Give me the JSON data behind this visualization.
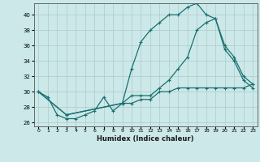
{
  "title": "",
  "xlabel": "Humidex (Indice chaleur)",
  "background_color": "#cce8e8",
  "grid_color": "#aacccc",
  "line_color": "#1a7070",
  "xlim": [
    -0.5,
    23.5
  ],
  "ylim": [
    25.5,
    41.5
  ],
  "yticks": [
    26,
    28,
    30,
    32,
    34,
    36,
    38,
    40
  ],
  "xticks": [
    0,
    1,
    2,
    3,
    4,
    5,
    6,
    7,
    8,
    9,
    10,
    11,
    12,
    13,
    14,
    15,
    16,
    17,
    18,
    19,
    20,
    21,
    22,
    23
  ],
  "line1_x": [
    0,
    1,
    2,
    3,
    4,
    5,
    6,
    7,
    8,
    9,
    10,
    11,
    12,
    13,
    14,
    15,
    16,
    17,
    18,
    19,
    20,
    21,
    22,
    23
  ],
  "line1_y": [
    30,
    29.3,
    27.0,
    26.5,
    26.5,
    27.0,
    27.5,
    29.3,
    27.5,
    28.5,
    28.5,
    29.0,
    29.0,
    30.0,
    30.0,
    30.5,
    30.5,
    30.5,
    30.5,
    30.5,
    30.5,
    30.5,
    30.5,
    31.0
  ],
  "line2_x": [
    0,
    3,
    9,
    10,
    11,
    12,
    13,
    14,
    15,
    16,
    17,
    18,
    19,
    20,
    21,
    22,
    23
  ],
  "line2_y": [
    30,
    27.0,
    28.5,
    33.0,
    36.5,
    38.0,
    39.0,
    40.0,
    40.0,
    41.0,
    41.5,
    40.0,
    39.5,
    36.0,
    34.5,
    32.0,
    31.0
  ],
  "line3_x": [
    0,
    3,
    9,
    10,
    11,
    12,
    13,
    14,
    15,
    16,
    17,
    18,
    19,
    20,
    21,
    22,
    23
  ],
  "line3_y": [
    30,
    27.0,
    28.5,
    29.5,
    29.5,
    29.5,
    30.5,
    31.5,
    33.0,
    34.5,
    38.0,
    39.0,
    39.5,
    35.5,
    34.0,
    31.5,
    30.5
  ]
}
